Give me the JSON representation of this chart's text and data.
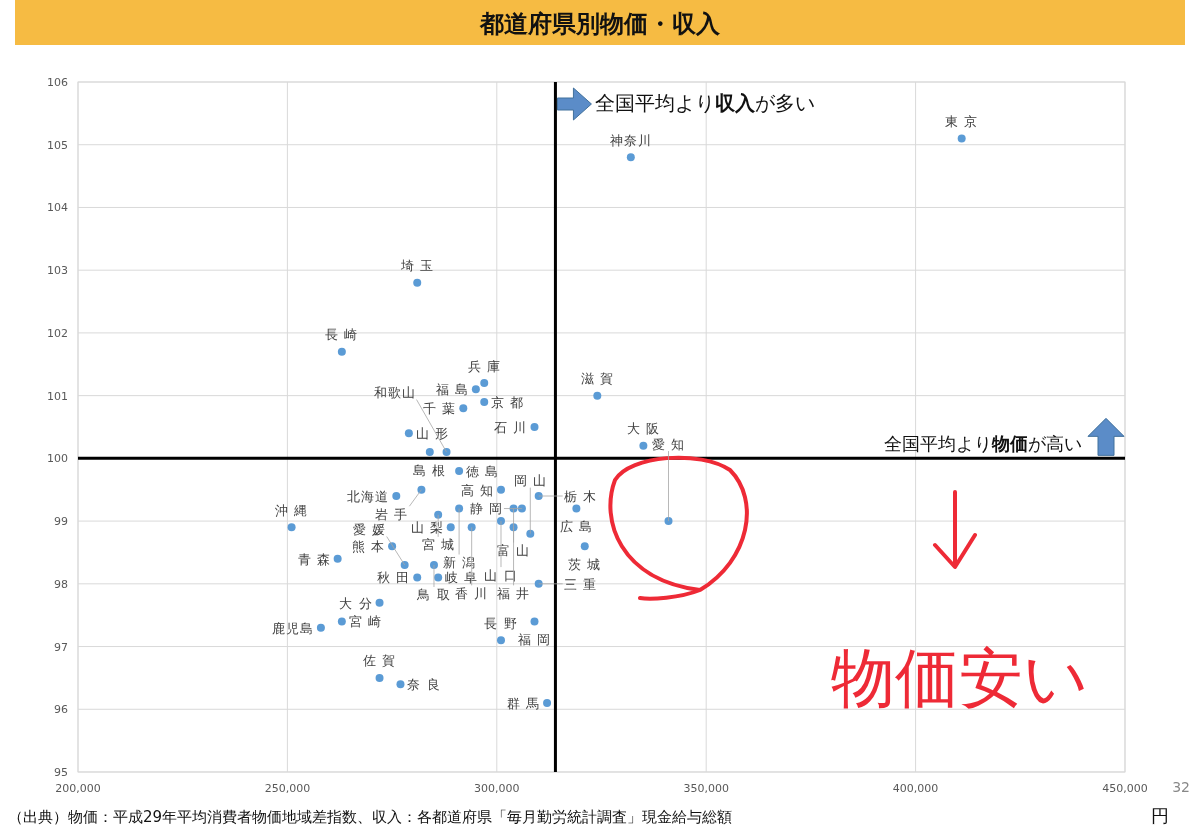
{
  "chart_data": {
    "type": "scatter",
    "title": "都道府県別物価・収入",
    "xlabel": "円",
    "x": [
      411000,
      332000,
      281000,
      292000,
      263000,
      295000,
      297000,
      297000,
      309000,
      279000,
      284000,
      288000,
      291000,
      306000,
      301000,
      304000,
      310000,
      276000,
      282000,
      286000,
      291000,
      301000,
      275000,
      289000,
      294000,
      304000,
      308000,
      281000,
      286000,
      285000,
      278000,
      272000,
      262000,
      251000,
      263000,
      258000,
      272000,
      277000,
      301000,
      309000,
      312000,
      310000,
      324000,
      335000,
      319000,
      341000,
      321000
    ],
    "values": [
      105.1,
      104.8,
      102.8,
      100.8,
      101.7,
      101.1,
      101.2,
      100.9,
      100.5,
      100.4,
      100.1,
      100.1,
      99.8,
      99.2,
      99.5,
      99.2,
      99.4,
      99.4,
      99.5,
      99.1,
      99.2,
      99.0,
      98.6,
      98.9,
      98.9,
      98.9,
      98.8,
      98.1,
      98.1,
      98.3,
      98.3,
      97.7,
      98.4,
      98.9,
      97.4,
      97.3,
      96.5,
      96.4,
      97.1,
      97.4,
      96.1,
      98.0,
      101.0,
      100.2,
      99.2,
      99.0,
      98.6
    ],
    "color": "#5b9bd5",
    "marker": "circle",
    "grid": true,
    "xlim": [
      200000,
      450000
    ],
    "ylim": [
      95,
      106
    ],
    "xticks": [
      {
        "value": 200000,
        "label": "200,000"
      },
      {
        "value": 250000,
        "label": "250,000"
      },
      {
        "value": 300000,
        "label": "300,000"
      },
      {
        "value": 350000,
        "label": "350,000"
      },
      {
        "value": 400000,
        "label": "400,000"
      },
      {
        "value": 450000,
        "label": "450,000"
      }
    ],
    "yticks": [
      95,
      96,
      97,
      98,
      99,
      100,
      101,
      102,
      103,
      104,
      105,
      106
    ],
    "ref_lines": [
      {
        "axis": "x",
        "value": 314000,
        "label": "全国平均より**収入**が多い",
        "color": "#000000"
      },
      {
        "axis": "y",
        "value": 100,
        "label": "全国平均より**物価**が高い",
        "color": "#000000"
      }
    ],
    "annotations": [
      {
        "text": "東 京",
        "x": 411000,
        "y": 105.1
      },
      {
        "text": "神奈川",
        "x": 332000,
        "y": 104.8
      },
      {
        "text": "埼 玉",
        "x": 281000,
        "y": 102.8
      },
      {
        "text": "千 葉",
        "x": 292000,
        "y": 100.8
      },
      {
        "text": "長 崎",
        "x": 263000,
        "y": 101.7
      },
      {
        "text": "福 島",
        "x": 295000,
        "y": 101.1
      },
      {
        "text": "兵 庫",
        "x": 297000,
        "y": 101.2
      },
      {
        "text": "京 都",
        "x": 297000,
        "y": 100.9
      },
      {
        "text": "石 川",
        "x": 309000,
        "y": 100.5
      },
      {
        "text": "山 形",
        "x": 279000,
        "y": 100.4
      },
      {
        "text": "島 根",
        "x": 284000,
        "y": 100.1
      },
      {
        "text": "和歌山",
        "x": 288000,
        "y": 100.1
      },
      {
        "text": "徳 島",
        "x": 291000,
        "y": 99.8
      },
      {
        "text": "静 岡",
        "x": 306000,
        "y": 99.2
      },
      {
        "text": "高 知",
        "x": 301000,
        "y": 99.5
      },
      {
        "text": "富 山",
        "x": 304000,
        "y": 99.2
      },
      {
        "text": "栃 木",
        "x": 310000,
        "y": 99.4
      },
      {
        "text": "北海道",
        "x": 276000,
        "y": 99.4
      },
      {
        "text": "岩 手",
        "x": 282000,
        "y": 99.5
      },
      {
        "text": "宮 城",
        "x": 286000,
        "y": 99.1
      },
      {
        "text": "新 潟",
        "x": 291000,
        "y": 99.2
      },
      {
        "text": "山 口",
        "x": 301000,
        "y": 99.0
      },
      {
        "text": "熊 本",
        "x": 275000,
        "y": 98.6
      },
      {
        "text": "山 梨",
        "x": 289000,
        "y": 98.9
      },
      {
        "text": "香 川",
        "x": 294000,
        "y": 98.9
      },
      {
        "text": "福 井",
        "x": 304000,
        "y": 98.9
      },
      {
        "text": "岡 山",
        "x": 308000,
        "y": 98.8
      },
      {
        "text": "秋 田",
        "x": 281000,
        "y": 98.1
      },
      {
        "text": "岐 阜",
        "x": 286000,
        "y": 98.1
      },
      {
        "text": "鳥 取",
        "x": 285000,
        "y": 98.3
      },
      {
        "text": "愛 媛",
        "x": 278000,
        "y": 98.3
      },
      {
        "text": "大 分",
        "x": 272000,
        "y": 97.7
      },
      {
        "text": "青 森",
        "x": 262000,
        "y": 98.4
      },
      {
        "text": "沖 縄",
        "x": 251000,
        "y": 98.9
      },
      {
        "text": "宮 崎",
        "x": 263000,
        "y": 97.4
      },
      {
        "text": "鹿児島",
        "x": 258000,
        "y": 97.3
      },
      {
        "text": "佐 賀",
        "x": 272000,
        "y": 96.5
      },
      {
        "text": "奈 良",
        "x": 277000,
        "y": 96.4
      },
      {
        "text": "長 野",
        "x": 301000,
        "y": 97.1
      },
      {
        "text": "福 岡",
        "x": 309000,
        "y": 97.4
      },
      {
        "text": "群 馬",
        "x": 312000,
        "y": 96.1
      },
      {
        "text": "三 重",
        "x": 310000,
        "y": 98.0
      },
      {
        "text": "滋 賀",
        "x": 324000,
        "y": 101.0
      },
      {
        "text": "大 阪",
        "x": 335000,
        "y": 100.2
      },
      {
        "text": "広 島",
        "x": 319000,
        "y": 99.2
      },
      {
        "text": "愛 知",
        "x": 341000,
        "y": 99.0
      },
      {
        "text": "茨 城",
        "x": 321000,
        "y": 98.6
      },
      "物価安い",
      "（出典）物価：平成29年平均消費者物価地域差指数、収入：各都道府県「毎月勤労統計調査」現金給与総額",
      "32"
    ]
  }
}
